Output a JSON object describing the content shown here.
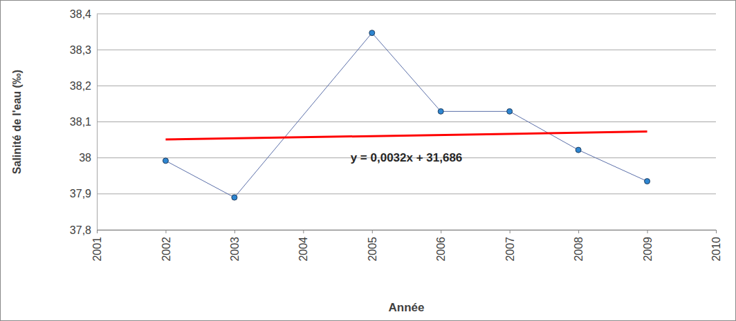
{
  "chart_data": {
    "type": "line",
    "y_label": "Salinité de l'eau (‰)",
    "x_label": "Année",
    "annotations": [
      "y = 0,0032x + 31,686"
    ],
    "series": [
      {
        "color": "#5a6ea8",
        "marker": "circle",
        "line_style": "solid",
        "x": [
          2002,
          2003,
          2005,
          2006,
          2007,
          2008,
          2009
        ],
        "values": [
          37.992,
          37.89,
          38.347,
          38.129,
          38.129,
          38.022,
          37.935
        ]
      },
      {
        "color": "#ff0000",
        "marker": "none",
        "line_style": "solid",
        "x": [
          2002,
          2009
        ],
        "values": [
          38.051,
          38.073
        ]
      }
    ],
    "xlim": [
      2001,
      2010
    ],
    "xticks": [
      2001,
      2002,
      2003,
      2004,
      2005,
      2006,
      2007,
      2008,
      2009,
      2010
    ],
    "ylim": [
      37.8,
      38.4
    ],
    "yticks": [
      {
        "value": 37.8,
        "label": "37,8"
      },
      {
        "value": 37.9,
        "label": "37,9"
      },
      38,
      {
        "value": 38.1,
        "label": "38,1"
      },
      {
        "value": 38.2,
        "label": "38,2"
      },
      {
        "value": 38.3,
        "label": "38,3"
      },
      {
        "value": 38.4,
        "label": "38,4"
      }
    ],
    "grid": true
  }
}
